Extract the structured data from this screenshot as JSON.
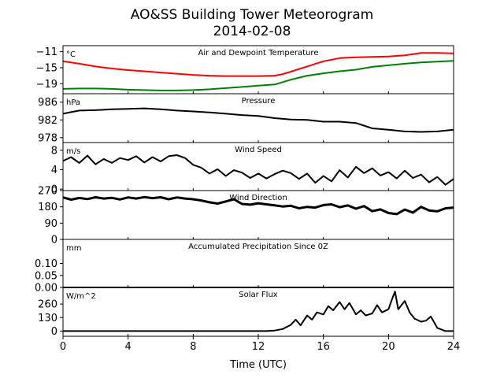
{
  "figure": {
    "title_line1": "AO&SS Building Tower Meteorogram",
    "title_line2": "2014-02-08",
    "xlabel": "Time (UTC)"
  },
  "chart_data": [
    {
      "type": "line",
      "title": "Air and Dewpoint Temperature",
      "unit": "°C",
      "ylim": [
        -21.5,
        -9.5
      ],
      "yticks": [
        -11,
        -15,
        -19
      ],
      "ytick_labels": [
        "−11",
        "−15",
        "−19"
      ],
      "xlim": [
        0,
        24
      ],
      "series": [
        {
          "name": "air-temperature",
          "color": "#ff0000",
          "x": [
            0,
            1,
            2,
            3,
            4,
            5,
            6,
            7,
            8,
            9,
            10,
            11,
            12,
            13,
            13.5,
            14,
            15,
            16,
            17,
            18,
            19,
            20,
            21,
            22,
            23,
            24
          ],
          "y": [
            -13.4,
            -14.0,
            -14.7,
            -15.2,
            -15.6,
            -15.9,
            -16.2,
            -16.5,
            -16.8,
            -17.0,
            -17.1,
            -17.1,
            -17.1,
            -17.0,
            -16.6,
            -16.0,
            -14.7,
            -13.4,
            -12.6,
            -12.4,
            -12.3,
            -12.2,
            -11.9,
            -11.3,
            -11.3,
            -11.4
          ]
        },
        {
          "name": "dewpoint-temperature",
          "color": "#008000",
          "x": [
            0,
            1,
            2,
            3,
            4,
            5,
            6,
            7,
            8,
            9,
            10,
            11,
            12,
            13,
            13.5,
            14,
            15,
            16,
            17,
            18,
            19,
            20,
            21,
            22,
            23,
            24
          ],
          "y": [
            -20.3,
            -20.2,
            -20.2,
            -20.3,
            -20.5,
            -20.6,
            -20.7,
            -20.7,
            -20.6,
            -20.4,
            -20.1,
            -19.8,
            -19.5,
            -19.2,
            -18.6,
            -18.0,
            -17.0,
            -16.4,
            -15.9,
            -15.5,
            -14.8,
            -14.4,
            -14.0,
            -13.7,
            -13.5,
            -13.3
          ]
        }
      ]
    },
    {
      "type": "line",
      "title": "Pressure",
      "unit": "hPa",
      "ylim": [
        976.9,
        987.9
      ],
      "yticks": [
        986,
        982,
        978
      ],
      "ytick_labels": [
        "986",
        "982",
        "978"
      ],
      "xlim": [
        0,
        24
      ],
      "series": [
        {
          "name": "pressure",
          "color": "#000000",
          "x": [
            0,
            1,
            2,
            3,
            4,
            5,
            6,
            7,
            8,
            9,
            10,
            11,
            12,
            13,
            14,
            15,
            16,
            17,
            18,
            19,
            20,
            21,
            22,
            23,
            24
          ],
          "y": [
            983.4,
            984.1,
            984.2,
            984.4,
            984.5,
            984.6,
            984.4,
            984.1,
            983.9,
            983.7,
            983.4,
            983.1,
            982.9,
            982.4,
            982.1,
            982.0,
            981.6,
            981.6,
            981.3,
            980.1,
            979.8,
            979.4,
            979.3,
            979.4,
            979.8
          ]
        }
      ]
    },
    {
      "type": "line",
      "title": "Wind Speed",
      "unit": "m/s",
      "ylim": [
        -0.3,
        9.6
      ],
      "yticks": [
        8,
        4,
        0
      ],
      "ytick_labels": [
        "8",
        "4",
        "0"
      ],
      "xlim": [
        0,
        24
      ],
      "series": [
        {
          "name": "wind-speed",
          "color": "#000000",
          "x": [
            0,
            0.5,
            1,
            1.5,
            2,
            2.5,
            3,
            3.5,
            4,
            4.5,
            5,
            5.5,
            6,
            6.5,
            7,
            7.5,
            8,
            8.5,
            9,
            9.5,
            10,
            10.5,
            11,
            11.5,
            12,
            12.5,
            13,
            13.5,
            14,
            14.5,
            15,
            15.5,
            16,
            16.5,
            17,
            17.5,
            18,
            18.5,
            19,
            19.5,
            20,
            20.5,
            21,
            21.5,
            22,
            22.5,
            23,
            23.5,
            24
          ],
          "y": [
            5.8,
            6.6,
            5.4,
            6.9,
            5.1,
            6.2,
            5.4,
            6.4,
            6.0,
            6.8,
            5.5,
            6.6,
            5.7,
            6.8,
            7.0,
            6.4,
            5.0,
            4.4,
            3.2,
            4.1,
            2.7,
            3.9,
            3.4,
            2.3,
            3.2,
            2.2,
            3.1,
            3.8,
            3.3,
            2.1,
            3.2,
            1.3,
            2.7,
            1.6,
            3.9,
            2.4,
            4.6,
            3.3,
            4.3,
            2.8,
            3.5,
            2.2,
            3.8,
            2.3,
            3.0,
            1.4,
            2.5,
            0.9,
            2.1
          ]
        }
      ]
    },
    {
      "type": "line",
      "title": "Wind Direction",
      "unit": "",
      "ylim": [
        0,
        270
      ],
      "yticks": [
        270,
        180,
        90,
        0
      ],
      "ytick_labels": [
        "270",
        "180",
        "90",
        "0"
      ],
      "xlim": [
        0,
        24
      ],
      "series": [
        {
          "name": "wind-direction",
          "color": "#000000",
          "x": [
            0,
            0.5,
            1,
            1.5,
            2,
            2.5,
            3,
            3.5,
            4,
            4.5,
            5,
            5.5,
            6,
            6.5,
            7,
            7.5,
            8,
            8.5,
            9,
            9.5,
            10,
            10.5,
            11,
            11.5,
            12,
            12.5,
            13,
            13.5,
            14,
            14.5,
            15,
            15.5,
            16,
            16.5,
            17,
            17.5,
            18,
            18.5,
            19,
            19.5,
            20,
            20.5,
            21,
            21.5,
            22,
            22.5,
            23,
            23.5,
            24
          ],
          "y": [
            232,
            220,
            229,
            223,
            233,
            226,
            230,
            221,
            232,
            226,
            234,
            228,
            233,
            222,
            232,
            226,
            222,
            215,
            205,
            198,
            210,
            222,
            196,
            192,
            200,
            194,
            188,
            182,
            186,
            172,
            180,
            176,
            190,
            194,
            178,
            188,
            170,
            184,
            156,
            166,
            146,
            140,
            165,
            148,
            180,
            160,
            155,
            172,
            176
          ]
        }
      ]
    },
    {
      "type": "line",
      "title": "Accumulated Precipitation Since 0Z",
      "unit": "mm",
      "ylim": [
        0,
        0.2
      ],
      "yticks": [
        0.1,
        0.05,
        0.0
      ],
      "ytick_labels": [
        "0.10",
        "0.05",
        "0.00"
      ],
      "xlim": [
        0,
        24
      ],
      "series": [
        {
          "name": "precipitation",
          "color": "#000000",
          "x": [
            0,
            24
          ],
          "y": [
            0,
            0
          ]
        }
      ]
    },
    {
      "type": "line",
      "title": "Solar Flux",
      "unit": "W/m^2",
      "ylim": [
        -50,
        420
      ],
      "yticks": [
        260,
        130,
        0
      ],
      "ytick_labels": [
        "260",
        "130",
        "0"
      ],
      "xlim": [
        0,
        24
      ],
      "series": [
        {
          "name": "solar-flux",
          "color": "#000000",
          "x": [
            0,
            12.5,
            13,
            13.5,
            14,
            14.3,
            14.6,
            15,
            15.3,
            15.6,
            16,
            16.3,
            16.6,
            17,
            17.3,
            17.6,
            18,
            18.3,
            18.6,
            19,
            19.3,
            19.6,
            20,
            20.2,
            20.4,
            20.6,
            21,
            21.3,
            21.6,
            22,
            22.3,
            22.6,
            23,
            23.5,
            24
          ],
          "y": [
            0,
            0,
            5,
            20,
            60,
            110,
            55,
            150,
            110,
            180,
            160,
            240,
            200,
            280,
            210,
            270,
            160,
            200,
            150,
            170,
            250,
            180,
            210,
            300,
            380,
            210,
            290,
            180,
            120,
            90,
            100,
            140,
            30,
            0,
            0
          ]
        }
      ]
    }
  ],
  "xaxis": {
    "ticks": [
      0,
      4,
      8,
      12,
      16,
      20,
      24
    ],
    "tick_labels": [
      "0",
      "4",
      "8",
      "12",
      "16",
      "20",
      "24"
    ]
  }
}
